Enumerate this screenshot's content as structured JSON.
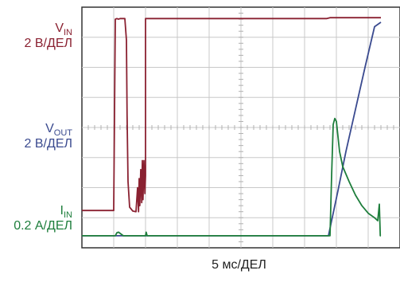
{
  "chart_data": {
    "type": "line",
    "xlabel": "5 мс/ДЕЛ",
    "grid": true,
    "divisions": {
      "x": 10,
      "y": 8
    },
    "channels": [
      {
        "name_main": "V",
        "name_sub": "IN",
        "scale": "2 В/ДЕЛ",
        "color": "#8a2131"
      },
      {
        "name_main": "V",
        "name_sub": "OUT",
        "scale": "2 В/ДЕЛ",
        "color": "#3a4a8f"
      },
      {
        "name_main": "I",
        "name_sub": "IN",
        "scale": "0.2 А/ДЕЛ",
        "color": "#1e7e3c"
      }
    ],
    "series": [
      {
        "id": "vin",
        "color": "#8a2131",
        "x": [
          0.0,
          1.0,
          1.0,
          1.05,
          1.1,
          1.15,
          1.2,
          1.35,
          1.4,
          1.42,
          1.45,
          1.5,
          1.6,
          1.7,
          1.75,
          1.78,
          1.8,
          1.82,
          1.85,
          1.88,
          1.9,
          1.92,
          1.95,
          1.98,
          2.0,
          2.0,
          7.7,
          7.8,
          9.4
        ],
        "y": [
          0.84,
          0.84,
          0.9,
          7.2,
          7.22,
          7.2,
          7.22,
          7.22,
          6.5,
          4.0,
          1.8,
          0.95,
          0.82,
          0.8,
          1.6,
          0.8,
          1.9,
          1.0,
          2.2,
          1.1,
          2.5,
          1.2,
          2.5,
          1.4,
          2.0,
          7.22,
          7.22,
          7.25,
          7.25
        ]
      },
      {
        "id": "vout",
        "color": "#3a4a8f",
        "x": [
          0.0,
          7.75,
          8.05,
          8.3,
          8.6,
          8.9,
          9.2,
          9.4
        ],
        "y": [
          0.0,
          0.0,
          1.5,
          2.8,
          4.2,
          5.6,
          6.95,
          7.1
        ]
      },
      {
        "id": "iin",
        "color": "#1e7e3c",
        "x": [
          0.0,
          1.05,
          1.1,
          1.15,
          1.2,
          1.3,
          2.0,
          2.02,
          2.05,
          7.8,
          7.85,
          7.9,
          7.95,
          8.0,
          8.05,
          8.1,
          8.2,
          8.4,
          8.6,
          8.8,
          9.0,
          9.2,
          9.3,
          9.35,
          9.38,
          9.4
        ],
        "y": [
          0.0,
          0.0,
          0.1,
          0.12,
          0.08,
          0.0,
          0.0,
          0.12,
          0.0,
          0.0,
          2.0,
          3.7,
          3.9,
          3.8,
          3.3,
          2.8,
          2.3,
          1.8,
          1.35,
          1.0,
          0.75,
          0.6,
          0.5,
          1.05,
          0.0,
          0.0
        ]
      }
    ]
  }
}
